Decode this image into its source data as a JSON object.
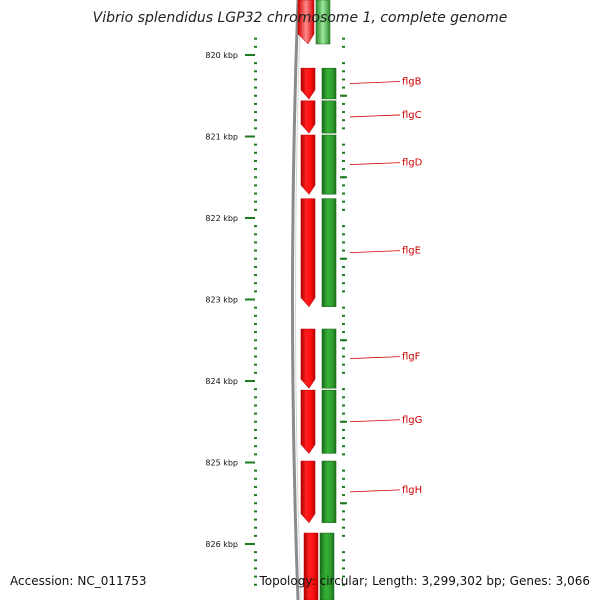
{
  "title": "Vibrio splendidus LGP32 chromosome 1, complete genome",
  "footer": {
    "accession_label": "Accession:",
    "accession": "NC_011753",
    "topology_label": "Topology:",
    "topology": "circular;",
    "length_label": "Length:",
    "length": "3,299,302 bp;",
    "genes_label": "Genes:",
    "genes": "3,066"
  },
  "scale": {
    "unit": "kbp",
    "labels": [
      "820 kbp",
      "821 kbp",
      "822 kbp",
      "823 kbp",
      "824 kbp",
      "825 kbp",
      "826 kbp"
    ],
    "major_ticks_kbp": [
      820,
      821,
      822,
      823,
      824,
      825,
      826
    ],
    "minor_tick_interval_kbp": 0.1,
    "view_range_kbp": [
      819.8,
      826.5
    ]
  },
  "genes": [
    {
      "name": "flgB",
      "start_kbp": 820.15,
      "end_kbp": 820.55,
      "strand": "+"
    },
    {
      "name": "flgC",
      "start_kbp": 820.55,
      "end_kbp": 820.97,
      "strand": "+"
    },
    {
      "name": "flgD",
      "start_kbp": 820.97,
      "end_kbp": 821.72,
      "strand": "+"
    },
    {
      "name": "flgE",
      "start_kbp": 821.75,
      "end_kbp": 823.1,
      "strand": "+"
    },
    {
      "name": "flgF",
      "start_kbp": 823.35,
      "end_kbp": 824.1,
      "strand": "+"
    },
    {
      "name": "flgG",
      "start_kbp": 824.1,
      "end_kbp": 824.9,
      "strand": "+"
    },
    {
      "name": "flgH",
      "start_kbp": 824.97,
      "end_kbp": 825.75,
      "strand": "+"
    }
  ],
  "colors": {
    "gene_arrow": "#ff1a1a",
    "gene_arrow_dark": "#c40000",
    "cds_bar": "#2e9e2e",
    "cds_bar_dark": "#1a6b1a",
    "scale_tick": "#1f7a1f",
    "label_text": "#cc0000",
    "leader_line": "#cc0000",
    "backbone": "#8a8a8a"
  }
}
